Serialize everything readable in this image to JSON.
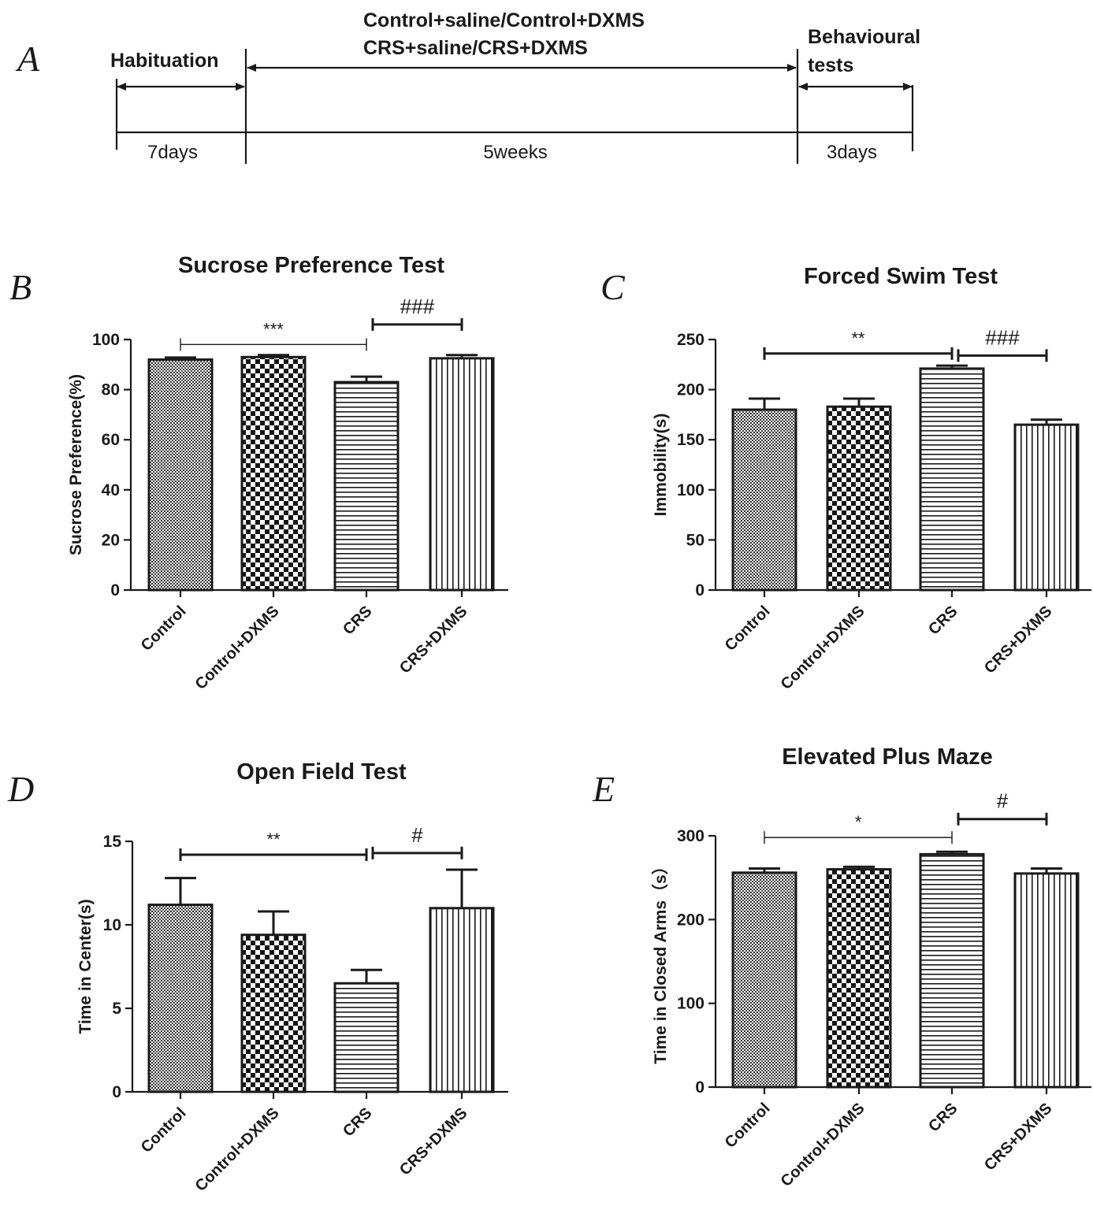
{
  "timeline": {
    "panel_label": "A",
    "phases": [
      {
        "header": [
          "Habituation"
        ],
        "duration": "7days"
      },
      {
        "header": [
          "Control+saline/Control+DXMS",
          "CRS+saline/CRS+DXMS"
        ],
        "duration": "5weeks"
      },
      {
        "header": [
          "Behavioural",
          "tests"
        ],
        "duration": "3days"
      }
    ]
  },
  "chart_data": [
    {
      "panel_label": "B",
      "type": "bar",
      "title": "Sucrose Preference Test",
      "ylabel": "Sucrose Preference(%)",
      "categories": [
        "Control",
        "Control+DXMS",
        "CRS",
        "CRS+DXMS"
      ],
      "values": [
        92,
        93,
        83,
        92.5
      ],
      "errors": [
        0.8,
        0.8,
        2.2,
        1.3
      ],
      "ylim": [
        0,
        100
      ],
      "yticks": [
        0,
        20,
        40,
        60,
        80,
        100
      ],
      "significance": [
        {
          "from": 0,
          "to": 2,
          "label": "***",
          "level": 98,
          "style": "thin"
        },
        {
          "from": 2,
          "to": 3,
          "label": "###",
          "level": 106,
          "style": "thick"
        }
      ]
    },
    {
      "panel_label": "C",
      "type": "bar",
      "title": "Forced Swim Test",
      "ylabel": "Immobility(s)",
      "categories": [
        "Control",
        "Control+DXMS",
        "CRS",
        "CRS+DXMS"
      ],
      "values": [
        180,
        183,
        221,
        165
      ],
      "errors": [
        11,
        8,
        3,
        5
      ],
      "ylim": [
        0,
        250
      ],
      "yticks": [
        0,
        50,
        100,
        150,
        200,
        250
      ],
      "significance": [
        {
          "from": 0,
          "to": 2,
          "label": "**",
          "level": 236,
          "style": "thick"
        },
        {
          "from": 2,
          "to": 3,
          "label": "###",
          "level": 234,
          "style": "thick"
        }
      ]
    },
    {
      "panel_label": "D",
      "type": "bar",
      "title": "Open Field Test",
      "ylabel": "Time in Center(s)",
      "categories": [
        "Control",
        "Control+DXMS",
        "CRS",
        "CRS+DXMS"
      ],
      "values": [
        11.2,
        9.4,
        6.5,
        11
      ],
      "errors": [
        1.6,
        1.4,
        0.8,
        2.3
      ],
      "ylim": [
        0,
        15
      ],
      "yticks": [
        0,
        5,
        10,
        15
      ],
      "significance": [
        {
          "from": 0,
          "to": 2,
          "label": "**",
          "level": 14.2,
          "style": "thick"
        },
        {
          "from": 2,
          "to": 3,
          "label": "#",
          "level": 14.3,
          "style": "thick"
        }
      ]
    },
    {
      "panel_label": "E",
      "type": "bar",
      "title": "Elevated Plus Maze",
      "ylabel": "Time in Closed Arms（s）",
      "categories": [
        "Control",
        "Control+DXMS",
        "CRS",
        "CRS+DXMS"
      ],
      "values": [
        256,
        260,
        278,
        255
      ],
      "errors": [
        5,
        3,
        3,
        6
      ],
      "ylim": [
        0,
        300
      ],
      "yticks": [
        0,
        100,
        200,
        300
      ],
      "significance": [
        {
          "from": 0,
          "to": 2,
          "label": "*",
          "level": 298,
          "style": "thin"
        },
        {
          "from": 2,
          "to": 3,
          "label": "#",
          "level": 320,
          "style": "thick"
        }
      ]
    }
  ],
  "colors": {
    "ink": "#1a1a1a",
    "background": "#ffffff"
  }
}
